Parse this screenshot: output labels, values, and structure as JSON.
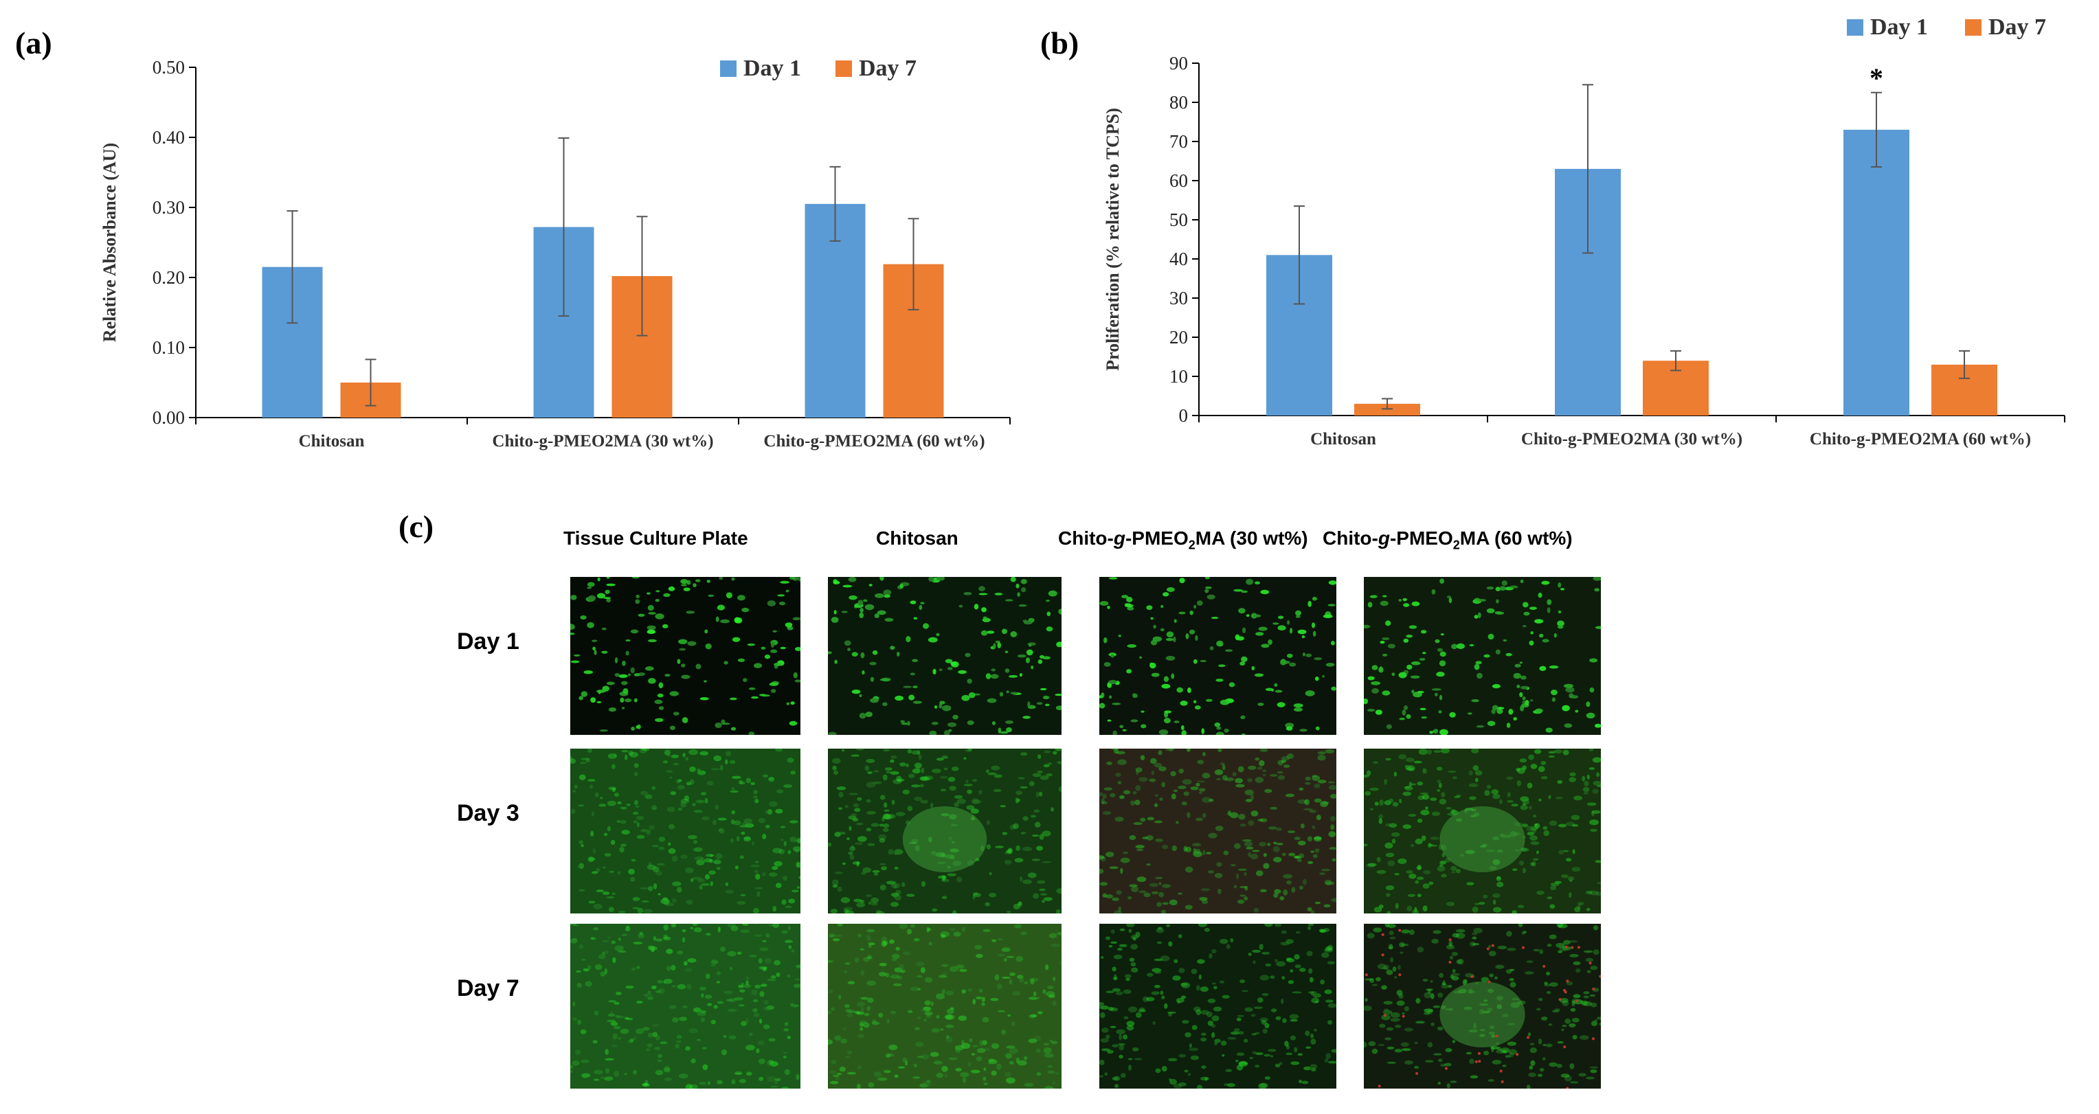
{
  "chart_data": [
    {
      "panel_label": "(a)",
      "type": "bar",
      "categories": [
        "Chitosan",
        "Chito-g-PMEO2MA (30 wt%)",
        "Chito-g-PMEO2MA (60 wt%)"
      ],
      "series": [
        {
          "name": "Day 1",
          "color": "#5B9BD5",
          "values": [
            0.215,
            0.272,
            0.305
          ],
          "errors": [
            0.08,
            0.127,
            0.053
          ]
        },
        {
          "name": "Day 7",
          "color": "#ED7D31",
          "values": [
            0.05,
            0.202,
            0.219
          ],
          "errors": [
            0.033,
            0.085,
            0.065
          ]
        }
      ],
      "ylabel": "Relative Absorbance (AU)",
      "ylim": [
        0,
        0.5
      ],
      "yticks": [
        "0.00",
        "0.10",
        "0.20",
        "0.30",
        "0.40",
        "0.50"
      ],
      "legend": "top-right",
      "grid": false
    },
    {
      "panel_label": "(b)",
      "type": "bar",
      "categories": [
        "Chitosan",
        "Chito-g-PMEO2MA (30 wt%)",
        "Chito-g-PMEO2MA (60 wt%)"
      ],
      "series": [
        {
          "name": "Day 1",
          "color": "#5B9BD5",
          "values": [
            41,
            63,
            73
          ],
          "errors": [
            12.5,
            21.5,
            9.5
          ]
        },
        {
          "name": "Day 7",
          "color": "#ED7D31",
          "values": [
            3,
            14,
            13
          ],
          "errors": [
            1.3,
            2.5,
            3.5
          ]
        }
      ],
      "ylabel": "Proliferation  (% relative to TCPS)",
      "ylim": [
        0,
        90
      ],
      "yticks": [
        "0",
        "10",
        "20",
        "30",
        "40",
        "50",
        "60",
        "70",
        "80",
        "90"
      ],
      "annotation": {
        "text": "*",
        "category_index": 2,
        "series_index": 0
      },
      "legend": "top-right",
      "grid": false
    }
  ],
  "panel_c": {
    "label": "(c)",
    "columns": [
      {
        "pre": "Tissue Culture Plate",
        "sub": "",
        "post": ""
      },
      {
        "pre": "Chitosan",
        "sub": "",
        "post": ""
      },
      {
        "pre": "Chito-",
        "italic": "g",
        "mid": "-PMEO",
        "sub": "2",
        "post": "MA (30 wt%)"
      },
      {
        "pre": "Chito-",
        "italic": "g",
        "mid": "-PMEO",
        "sub": "2",
        "post": "MA (60 wt%)"
      }
    ],
    "rows": [
      "Day 1",
      "Day 3",
      "Day 7"
    ]
  }
}
